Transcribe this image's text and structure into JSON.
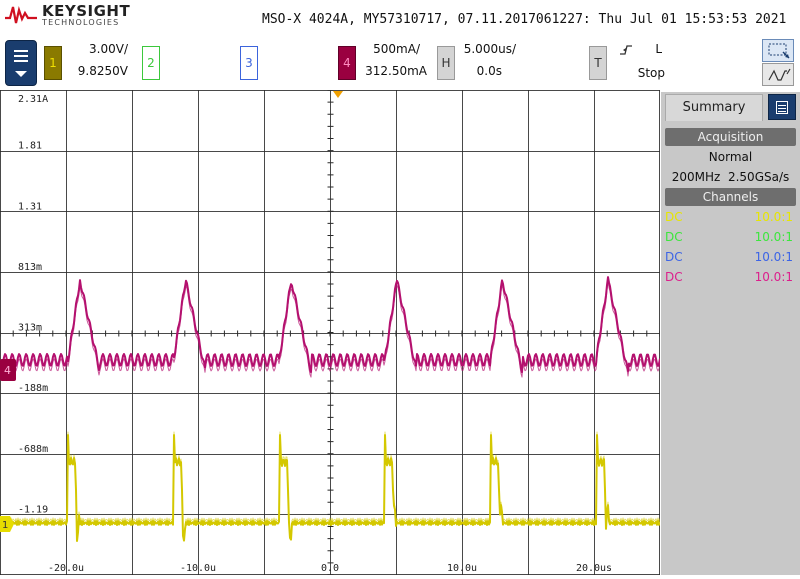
{
  "header": {
    "brand": "KEYSIGHT",
    "brand_sub": "TECHNOLOGIES",
    "title": "MSO-X 4024A, MY57310717, 07.11.2017061227: Thu Jul 01 15:53:53 2021"
  },
  "channels": [
    {
      "num": "1",
      "scale": "3.00V/",
      "offset": "9.8250V",
      "color": "#c8b400"
    },
    {
      "num": "2",
      "scale": "",
      "offset": "",
      "color": "#3cc83c"
    },
    {
      "num": "3",
      "scale": "",
      "offset": "",
      "color": "#3c64dc"
    },
    {
      "num": "4",
      "scale": "500mA/",
      "offset": "312.50mA",
      "color": "#b40050"
    }
  ],
  "horizontal": {
    "label": "H",
    "scale": "5.000us/",
    "delay": "0.0s"
  },
  "trigger": {
    "label": "T",
    "slope_icon": "rising-edge-icon",
    "level": "L",
    "state": "Stop"
  },
  "y_labels": [
    "2.31A",
    "1.81",
    "1.31",
    "813m",
    "313m",
    "-188m",
    "-688m",
    "-1.19"
  ],
  "x_labels": [
    "-20.0u",
    "-10.0u",
    "0.0",
    "10.0u",
    "20.0us"
  ],
  "sidebar": {
    "tab": "Summary",
    "acq_header": "Acquisition",
    "acq_mode": "Normal",
    "acq_bw": "200MHz",
    "acq_rate": "2.50GSa/s",
    "chan_header": "Channels",
    "rows": [
      {
        "coupling": "DC",
        "probe": "10.0:1",
        "color": "#e6e600"
      },
      {
        "coupling": "DC",
        "probe": "10.0:1",
        "color": "#3ce63c"
      },
      {
        "coupling": "DC",
        "probe": "10.0:1",
        "color": "#3c64e6"
      },
      {
        "coupling": "DC",
        "probe": "10.0:1",
        "color": "#dc1e8c"
      }
    ]
  },
  "markers": {
    "ch4_ground": "4",
    "ch1_ground": "1"
  },
  "colors": {
    "ch1_trace": "#d4c800",
    "ch4_trace": "#b4106e",
    "grid": "#2a2a2a",
    "trigger_marker": "#f0a000"
  }
}
